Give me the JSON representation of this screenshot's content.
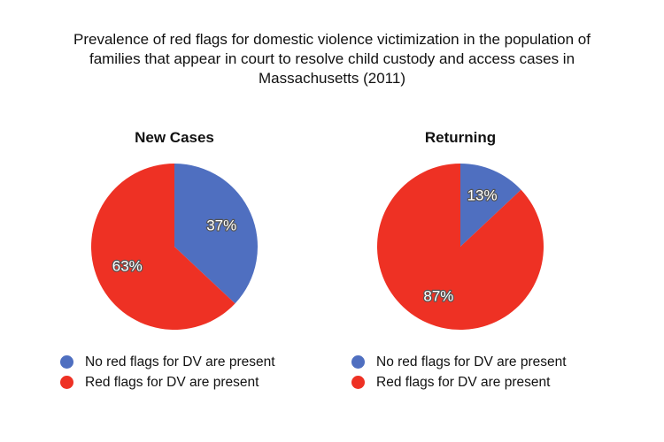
{
  "title": "Prevalence of red flags for domestic violence victimization in the population of\nfamilies that appear in court to resolve child custody and access cases in\nMassachusetts (2011)",
  "colors": {
    "no_flags": "#4f6fc0",
    "red_flags": "#ee3124"
  },
  "chart_data": [
    {
      "type": "pie",
      "title": "New Cases",
      "slices": [
        {
          "label": "No red flags for DV are present",
          "value": 37,
          "display": "37%",
          "color": "#4f6fc0"
        },
        {
          "label": "Red flags for DV are present",
          "value": 63,
          "display": "63%",
          "color": "#ee3124"
        }
      ],
      "legend": [
        "No red flags for DV are present",
        "Red flags for DV are present"
      ],
      "legend_position": "bottom"
    },
    {
      "type": "pie",
      "title": "Returning",
      "slices": [
        {
          "label": "No red flags for DV are present",
          "value": 13,
          "display": "13%",
          "color": "#4f6fc0"
        },
        {
          "label": "Red flags for DV are present",
          "value": 87,
          "display": "87%",
          "color": "#ee3124"
        }
      ],
      "legend": [
        "No red flags for DV are present",
        "Red flags for DV are present"
      ],
      "legend_position": "bottom"
    }
  ]
}
